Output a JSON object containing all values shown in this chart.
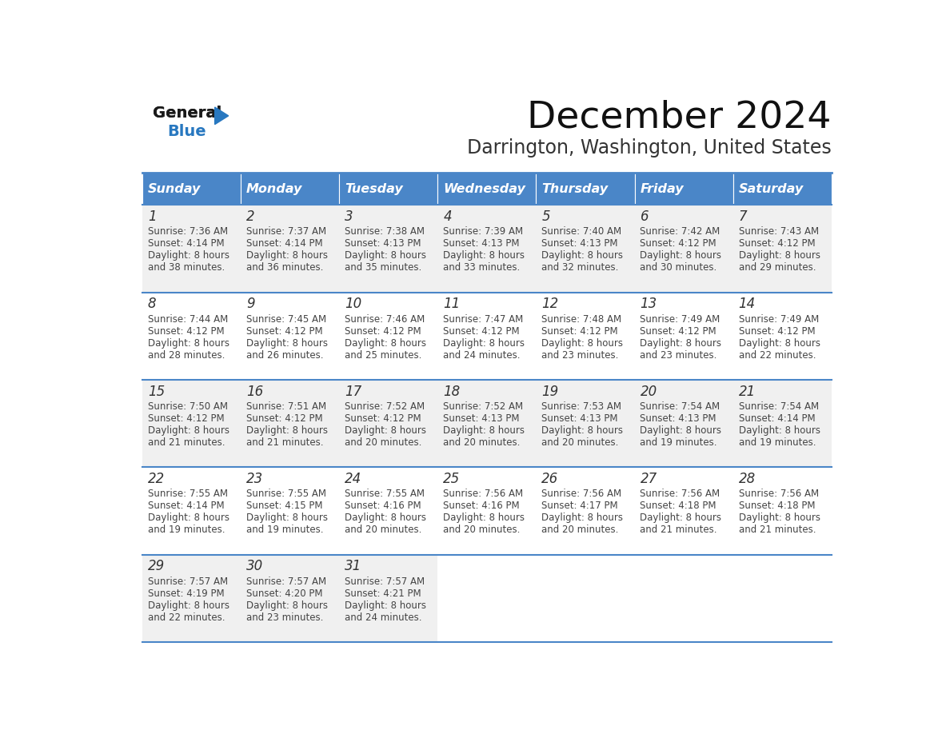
{
  "title": "December 2024",
  "subtitle": "Darrington, Washington, United States",
  "header_bg_color": "#4a86c8",
  "header_text_color": "#ffffff",
  "cell_bg_color_odd": "#f0f0f0",
  "cell_bg_color_even": "#ffffff",
  "border_color": "#4a86c8",
  "text_color": "#444444",
  "days_of_week": [
    "Sunday",
    "Monday",
    "Tuesday",
    "Wednesday",
    "Thursday",
    "Friday",
    "Saturday"
  ],
  "calendar_data": [
    [
      {
        "day": 1,
        "sunrise": "7:36 AM",
        "sunset": "4:14 PM",
        "daylight": "8 hours and 38 minutes."
      },
      {
        "day": 2,
        "sunrise": "7:37 AM",
        "sunset": "4:14 PM",
        "daylight": "8 hours and 36 minutes."
      },
      {
        "day": 3,
        "sunrise": "7:38 AM",
        "sunset": "4:13 PM",
        "daylight": "8 hours and 35 minutes."
      },
      {
        "day": 4,
        "sunrise": "7:39 AM",
        "sunset": "4:13 PM",
        "daylight": "8 hours and 33 minutes."
      },
      {
        "day": 5,
        "sunrise": "7:40 AM",
        "sunset": "4:13 PM",
        "daylight": "8 hours and 32 minutes."
      },
      {
        "day": 6,
        "sunrise": "7:42 AM",
        "sunset": "4:12 PM",
        "daylight": "8 hours and 30 minutes."
      },
      {
        "day": 7,
        "sunrise": "7:43 AM",
        "sunset": "4:12 PM",
        "daylight": "8 hours and 29 minutes."
      }
    ],
    [
      {
        "day": 8,
        "sunrise": "7:44 AM",
        "sunset": "4:12 PM",
        "daylight": "8 hours and 28 minutes."
      },
      {
        "day": 9,
        "sunrise": "7:45 AM",
        "sunset": "4:12 PM",
        "daylight": "8 hours and 26 minutes."
      },
      {
        "day": 10,
        "sunrise": "7:46 AM",
        "sunset": "4:12 PM",
        "daylight": "8 hours and 25 minutes."
      },
      {
        "day": 11,
        "sunrise": "7:47 AM",
        "sunset": "4:12 PM",
        "daylight": "8 hours and 24 minutes."
      },
      {
        "day": 12,
        "sunrise": "7:48 AM",
        "sunset": "4:12 PM",
        "daylight": "8 hours and 23 minutes."
      },
      {
        "day": 13,
        "sunrise": "7:49 AM",
        "sunset": "4:12 PM",
        "daylight": "8 hours and 23 minutes."
      },
      {
        "day": 14,
        "sunrise": "7:49 AM",
        "sunset": "4:12 PM",
        "daylight": "8 hours and 22 minutes."
      }
    ],
    [
      {
        "day": 15,
        "sunrise": "7:50 AM",
        "sunset": "4:12 PM",
        "daylight": "8 hours and 21 minutes."
      },
      {
        "day": 16,
        "sunrise": "7:51 AM",
        "sunset": "4:12 PM",
        "daylight": "8 hours and 21 minutes."
      },
      {
        "day": 17,
        "sunrise": "7:52 AM",
        "sunset": "4:12 PM",
        "daylight": "8 hours and 20 minutes."
      },
      {
        "day": 18,
        "sunrise": "7:52 AM",
        "sunset": "4:13 PM",
        "daylight": "8 hours and 20 minutes."
      },
      {
        "day": 19,
        "sunrise": "7:53 AM",
        "sunset": "4:13 PM",
        "daylight": "8 hours and 20 minutes."
      },
      {
        "day": 20,
        "sunrise": "7:54 AM",
        "sunset": "4:13 PM",
        "daylight": "8 hours and 19 minutes."
      },
      {
        "day": 21,
        "sunrise": "7:54 AM",
        "sunset": "4:14 PM",
        "daylight": "8 hours and 19 minutes."
      }
    ],
    [
      {
        "day": 22,
        "sunrise": "7:55 AM",
        "sunset": "4:14 PM",
        "daylight": "8 hours and 19 minutes."
      },
      {
        "day": 23,
        "sunrise": "7:55 AM",
        "sunset": "4:15 PM",
        "daylight": "8 hours and 19 minutes."
      },
      {
        "day": 24,
        "sunrise": "7:55 AM",
        "sunset": "4:16 PM",
        "daylight": "8 hours and 20 minutes."
      },
      {
        "day": 25,
        "sunrise": "7:56 AM",
        "sunset": "4:16 PM",
        "daylight": "8 hours and 20 minutes."
      },
      {
        "day": 26,
        "sunrise": "7:56 AM",
        "sunset": "4:17 PM",
        "daylight": "8 hours and 20 minutes."
      },
      {
        "day": 27,
        "sunrise": "7:56 AM",
        "sunset": "4:18 PM",
        "daylight": "8 hours and 21 minutes."
      },
      {
        "day": 28,
        "sunrise": "7:56 AM",
        "sunset": "4:18 PM",
        "daylight": "8 hours and 21 minutes."
      }
    ],
    [
      {
        "day": 29,
        "sunrise": "7:57 AM",
        "sunset": "4:19 PM",
        "daylight": "8 hours and 22 minutes."
      },
      {
        "day": 30,
        "sunrise": "7:57 AM",
        "sunset": "4:20 PM",
        "daylight": "8 hours and 23 minutes."
      },
      {
        "day": 31,
        "sunrise": "7:57 AM",
        "sunset": "4:21 PM",
        "daylight": "8 hours and 24 minutes."
      },
      null,
      null,
      null,
      null
    ]
  ],
  "logo_color_general": "#1a1a1a",
  "logo_color_blue": "#2878c0",
  "logo_triangle_color": "#2878c0",
  "fig_width": 11.88,
  "fig_height": 9.18,
  "dpi": 100
}
